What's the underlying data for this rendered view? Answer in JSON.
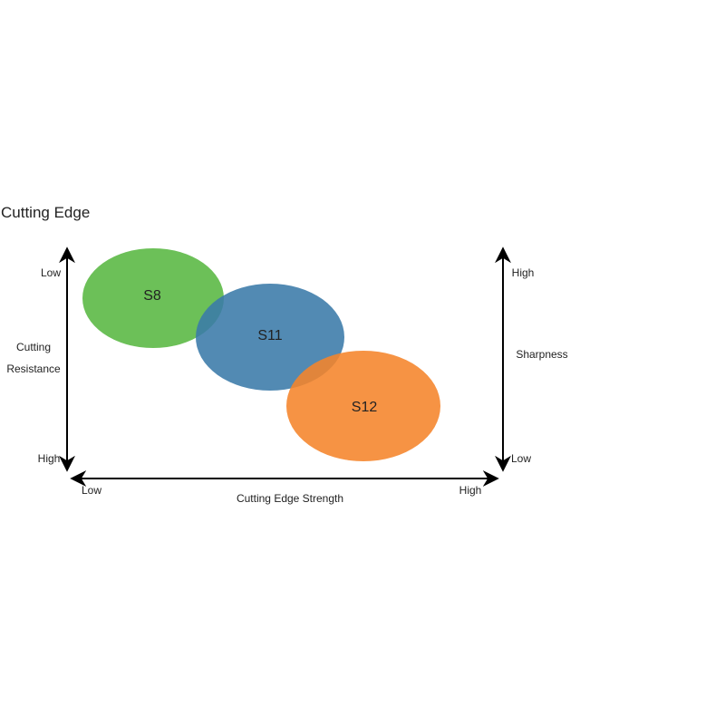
{
  "title": "Cutting Edge",
  "left_axis": {
    "label": "Cutting Resistance",
    "top": "Low",
    "bottom": "High"
  },
  "right_axis": {
    "label": "Sharpness",
    "top": "High",
    "bottom": "Low"
  },
  "bottom_axis": {
    "label": "Cutting Edge Strength",
    "left": "Low",
    "right": "High"
  },
  "nodes": [
    {
      "label": "S8"
    },
    {
      "label": "S11"
    },
    {
      "label": "S12"
    }
  ]
}
